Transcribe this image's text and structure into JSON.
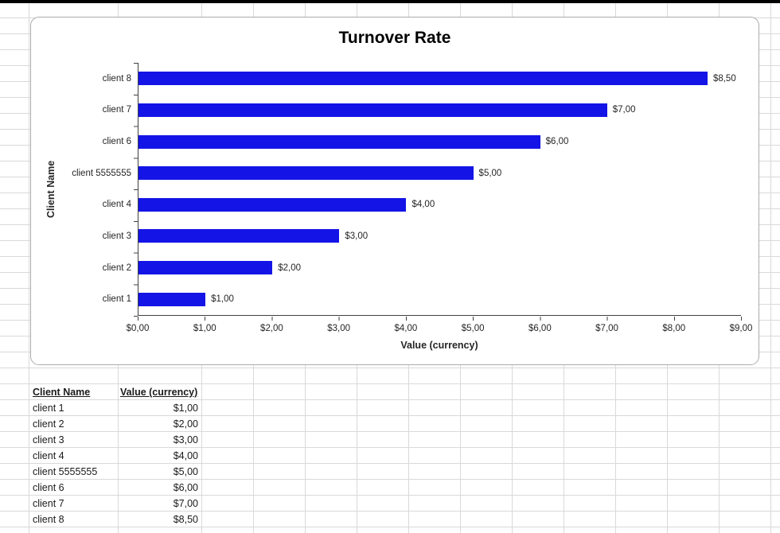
{
  "chart_data": {
    "type": "bar",
    "orientation": "horizontal",
    "title": "Turnover Rate",
    "xlabel": "Value (currency)",
    "ylabel": "Client Name",
    "categories": [
      "client 1",
      "client 2",
      "client 3",
      "client 4",
      "client 5555555",
      "client 6",
      "client 7",
      "client 8"
    ],
    "values": [
      1.0,
      2.0,
      3.0,
      4.0,
      5.0,
      6.0,
      7.0,
      8.5
    ],
    "value_labels": [
      "$1,00",
      "$2,00",
      "$3,00",
      "$4,00",
      "$5,00",
      "$6,00",
      "$7,00",
      "$8,50"
    ],
    "xlim": [
      0,
      9
    ],
    "x_tick_labels": [
      "$0,00",
      "$1,00",
      "$2,00",
      "$3,00",
      "$4,00",
      "$5,00",
      "$6,00",
      "$7,00",
      "$8,00",
      "$9,00"
    ],
    "bar_color": "#1414E6",
    "grid": false,
    "legend": false
  },
  "table": {
    "headers": [
      "Client Name",
      "Value (currency)"
    ],
    "rows": [
      [
        "client 1",
        "$1,00"
      ],
      [
        "client 2",
        "$2,00"
      ],
      [
        "client 3",
        "$3,00"
      ],
      [
        "client 4",
        "$4,00"
      ],
      [
        "client 5555555",
        "$5,00"
      ],
      [
        "client 6",
        "$6,00"
      ],
      [
        "client 7",
        "$7,00"
      ],
      [
        "client 8",
        "$8,50"
      ]
    ]
  }
}
